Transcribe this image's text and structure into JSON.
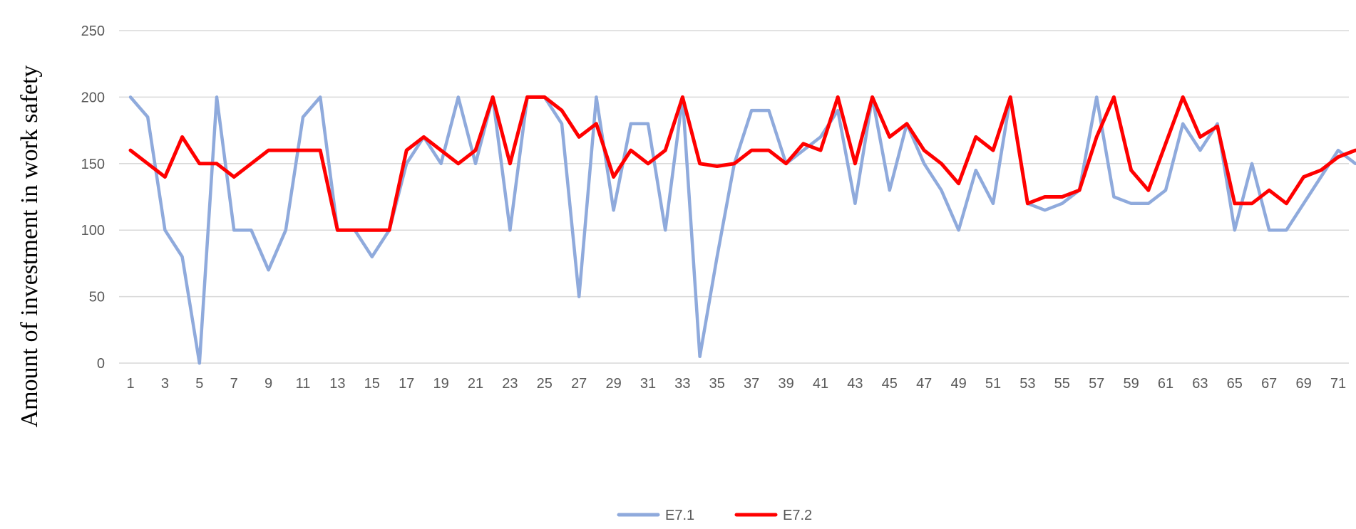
{
  "chart_data": {
    "type": "line",
    "title": "",
    "xlabel": "",
    "ylabel": "Amount of investment in work safety",
    "ylim": [
      0,
      250
    ],
    "yticks": [
      0,
      50,
      100,
      150,
      200,
      250
    ],
    "xticks": [
      1,
      3,
      5,
      7,
      9,
      11,
      13,
      15,
      17,
      19,
      21,
      23,
      25,
      27,
      29,
      31,
      33,
      35,
      37,
      39,
      41,
      43,
      45,
      47,
      49,
      51,
      53,
      55,
      57,
      59,
      61,
      63,
      65,
      67,
      69,
      71
    ],
    "x": [
      1,
      2,
      3,
      4,
      5,
      6,
      7,
      8,
      9,
      10,
      11,
      12,
      13,
      14,
      15,
      16,
      17,
      18,
      19,
      20,
      21,
      22,
      23,
      24,
      25,
      26,
      27,
      28,
      29,
      30,
      31,
      32,
      33,
      34,
      35,
      36,
      37,
      38,
      39,
      40,
      41,
      42,
      43,
      44,
      45,
      46,
      47,
      48,
      49,
      50,
      51,
      52,
      53,
      54,
      55,
      56,
      57,
      58,
      59,
      60,
      61,
      62,
      63,
      64,
      65,
      66,
      67,
      68,
      69,
      70,
      71,
      72
    ],
    "grid": true,
    "legend_position": "bottom",
    "series": [
      {
        "name": "E7.1",
        "color": "#8faadc",
        "values": [
          200,
          185,
          100,
          80,
          0,
          200,
          100,
          100,
          70,
          100,
          185,
          200,
          100,
          100,
          80,
          100,
          150,
          170,
          150,
          200,
          150,
          200,
          100,
          200,
          200,
          180,
          50,
          200,
          115,
          180,
          180,
          100,
          200,
          5,
          80,
          150,
          190,
          190,
          150,
          160,
          170,
          190,
          120,
          200,
          130,
          180,
          150,
          130,
          100,
          145,
          120,
          200,
          120,
          115,
          120,
          130,
          200,
          125,
          120,
          120,
          130,
          180,
          160,
          180,
          100,
          150,
          100,
          100,
          120,
          140,
          160,
          150
        ]
      },
      {
        "name": "E7.2",
        "color": "#ff0000",
        "values": [
          160,
          150,
          140,
          170,
          150,
          150,
          140,
          150,
          160,
          160,
          160,
          160,
          100,
          100,
          100,
          100,
          160,
          170,
          160,
          150,
          160,
          200,
          150,
          200,
          200,
          190,
          170,
          180,
          140,
          160,
          150,
          160,
          200,
          150,
          148,
          150,
          160,
          160,
          150,
          165,
          160,
          200,
          150,
          200,
          170,
          180,
          160,
          150,
          135,
          170,
          160,
          200,
          120,
          125,
          125,
          130,
          170,
          200,
          145,
          130,
          165,
          200,
          170,
          178,
          120,
          120,
          130,
          120,
          140,
          145,
          155,
          160
        ]
      }
    ]
  }
}
